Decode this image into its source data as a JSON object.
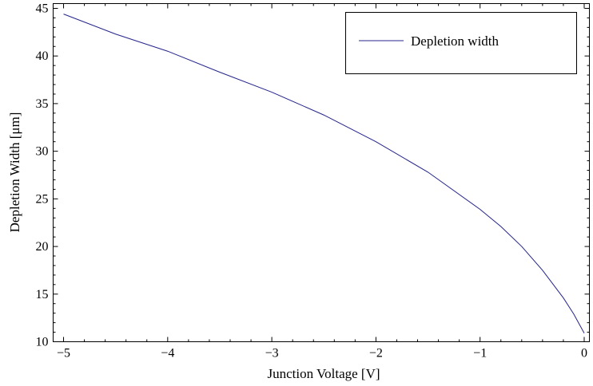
{
  "chart_data": {
    "type": "line",
    "xlabel": "Junction Voltage [V]",
    "ylabel": "Depletion Width [μm]",
    "xlim": [
      -5.1,
      0.05
    ],
    "ylim": [
      10,
      45.5
    ],
    "x_ticks": [
      -5,
      -4,
      -3,
      -2,
      -1,
      0
    ],
    "x_tick_labels": [
      "−5",
      "−4",
      "−3",
      "−2",
      "−1",
      "0"
    ],
    "y_ticks": [
      10,
      15,
      20,
      25,
      30,
      35,
      40,
      45
    ],
    "y_tick_labels": [
      "10",
      "15",
      "20",
      "25",
      "30",
      "35",
      "40",
      "45"
    ],
    "grid": false,
    "legend_position": "top-right",
    "series": [
      {
        "name": "Depletion width",
        "color": "#24248c",
        "x": [
          -5.0,
          -4.5,
          -4.0,
          -3.5,
          -3.0,
          -2.5,
          -2.0,
          -1.5,
          -1.0,
          -0.8,
          -0.6,
          -0.4,
          -0.2,
          -0.1,
          0.0
        ],
        "y": [
          44.4,
          42.3,
          40.5,
          38.3,
          36.2,
          33.8,
          31.0,
          27.8,
          23.9,
          22.1,
          20.0,
          17.5,
          14.6,
          12.9,
          10.9
        ]
      }
    ]
  }
}
